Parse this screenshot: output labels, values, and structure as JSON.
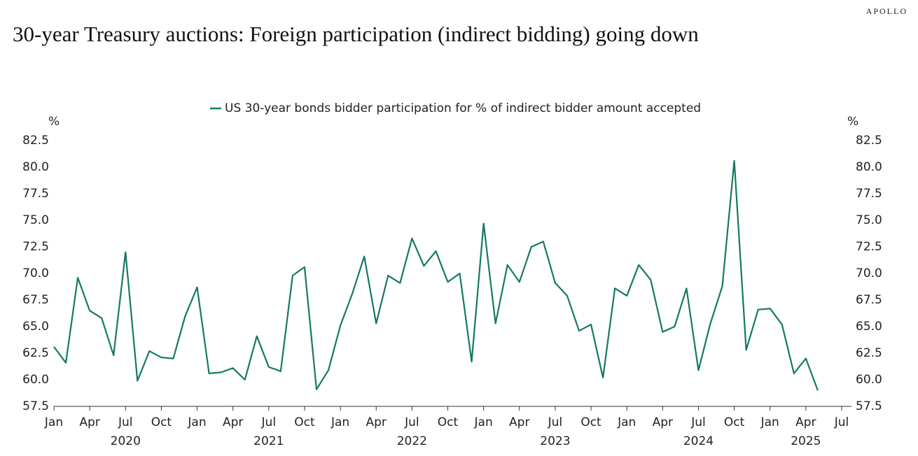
{
  "chart_data": {
    "type": "line",
    "brand": "APOLLO",
    "title": "30-year Treasury auctions: Foreign participation (indirect bidding) going down",
    "y_unit": "%",
    "y2_unit": "%",
    "legend": "top",
    "x": [
      "2020-01",
      "2020-02",
      "2020-03",
      "2020-04",
      "2020-05",
      "2020-06",
      "2020-07",
      "2020-08",
      "2020-09",
      "2020-10",
      "2020-11",
      "2020-12",
      "2021-01",
      "2021-02",
      "2021-03",
      "2021-04",
      "2021-05",
      "2021-06",
      "2021-07",
      "2021-08",
      "2021-09",
      "2021-10",
      "2021-11",
      "2021-12",
      "2022-01",
      "2022-02",
      "2022-03",
      "2022-04",
      "2022-05",
      "2022-06",
      "2022-07",
      "2022-08",
      "2022-09",
      "2022-10",
      "2022-11",
      "2022-12",
      "2023-01",
      "2023-02",
      "2023-03",
      "2023-04",
      "2023-05",
      "2023-06",
      "2023-07",
      "2023-08",
      "2023-09",
      "2023-10",
      "2023-11",
      "2023-12",
      "2024-01",
      "2024-02",
      "2024-03",
      "2024-04",
      "2024-05",
      "2024-06",
      "2024-07",
      "2024-08",
      "2024-09",
      "2024-10",
      "2024-11",
      "2024-12",
      "2025-01",
      "2025-02",
      "2025-03",
      "2025-04",
      "2025-05"
    ],
    "series": [
      {
        "name": "US 30-year bonds bidder participation for % of indirect bidder amount accepted",
        "color": "#137a63",
        "values": [
          63.1,
          61.6,
          69.6,
          66.5,
          65.8,
          62.3,
          72.0,
          59.9,
          62.7,
          62.1,
          62.0,
          66.0,
          68.7,
          60.6,
          60.7,
          61.1,
          60.0,
          64.1,
          61.2,
          60.8,
          69.8,
          70.6,
          59.1,
          60.9,
          65.1,
          68.1,
          71.6,
          65.3,
          69.8,
          69.1,
          73.3,
          70.7,
          72.1,
          69.2,
          70.0,
          61.7,
          74.7,
          65.3,
          70.8,
          69.2,
          72.5,
          73.0,
          69.1,
          67.9,
          64.6,
          65.2,
          60.2,
          68.6,
          67.9,
          70.8,
          69.4,
          64.5,
          65.0,
          68.6,
          60.9,
          65.3,
          68.8,
          80.6,
          62.8,
          66.6,
          66.7,
          65.2,
          60.6,
          62.0,
          59.0
        ]
      }
    ],
    "xlim": [
      "2020-01",
      "2025-07"
    ],
    "xticks": [
      {
        "value": "2020-01",
        "label": "Jan"
      },
      {
        "value": "2020-04",
        "label": "Apr"
      },
      {
        "value": "2020-07",
        "label": "Jul"
      },
      {
        "value": "2020-10",
        "label": "Oct"
      },
      {
        "value": "2021-01",
        "label": "Jan"
      },
      {
        "value": "2021-04",
        "label": "Apr"
      },
      {
        "value": "2021-07",
        "label": "Jul"
      },
      {
        "value": "2021-10",
        "label": "Oct"
      },
      {
        "value": "2022-01",
        "label": "Jan"
      },
      {
        "value": "2022-04",
        "label": "Apr"
      },
      {
        "value": "2022-07",
        "label": "Jul"
      },
      {
        "value": "2022-10",
        "label": "Oct"
      },
      {
        "value": "2023-01",
        "label": "Jan"
      },
      {
        "value": "2023-04",
        "label": "Apr"
      },
      {
        "value": "2023-07",
        "label": "Jul"
      },
      {
        "value": "2023-10",
        "label": "Oct"
      },
      {
        "value": "2024-01",
        "label": "Jan"
      },
      {
        "value": "2024-04",
        "label": "Apr"
      },
      {
        "value": "2024-07",
        "label": "Jul"
      },
      {
        "value": "2024-10",
        "label": "Oct"
      },
      {
        "value": "2025-01",
        "label": "Jan"
      },
      {
        "value": "2025-04",
        "label": "Apr"
      },
      {
        "value": "2025-07",
        "label": "Jul"
      }
    ],
    "x_year_labels": [
      {
        "value": "2020-07",
        "label": "2020"
      },
      {
        "value": "2021-07",
        "label": "2021"
      },
      {
        "value": "2022-07",
        "label": "2022"
      },
      {
        "value": "2023-07",
        "label": "2023"
      },
      {
        "value": "2024-07",
        "label": "2024"
      },
      {
        "value": "2025-04",
        "label": "2025"
      }
    ],
    "ylim": [
      57.5,
      82.5
    ],
    "yticks": [
      57.5,
      {
        "value": 60,
        "label": "60.0"
      },
      62.5,
      {
        "value": 65,
        "label": "65.0"
      },
      67.5,
      {
        "value": 70,
        "label": "70.0"
      },
      72.5,
      {
        "value": 75,
        "label": "75.0"
      },
      77.5,
      {
        "value": 80,
        "label": "80.0"
      },
      82.5
    ],
    "y2lim": [
      57.5,
      82.5
    ],
    "y2ticks": [
      57.5,
      {
        "value": 60,
        "label": "60.0"
      },
      62.5,
      {
        "value": 65,
        "label": "65.0"
      },
      67.5,
      {
        "value": 70,
        "label": "70.0"
      },
      72.5,
      {
        "value": 75,
        "label": "75.0"
      },
      77.5,
      {
        "value": 80,
        "label": "80.0"
      },
      82.5
    ],
    "grid": false
  }
}
